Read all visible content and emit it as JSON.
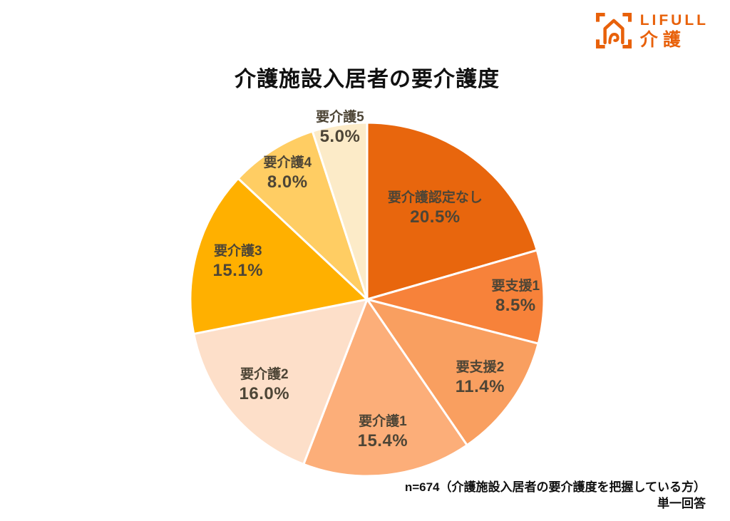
{
  "logo": {
    "brand": "LIFULL",
    "sub": "介護",
    "color": "#E8610A"
  },
  "title": "介護施設入居者の要介護度",
  "note_line1": "n=674（介護施設入居者の要介護度を把握している方）",
  "note_line2": "単一回答",
  "chart_data": {
    "type": "pie",
    "title": "介護施設入居者の要介護度",
    "unit": "%",
    "start_angle_deg": 0,
    "direction": "clockwise",
    "stroke_color": "#FFFFFF",
    "label_color": "#4d4536",
    "slices": [
      {
        "label": "要介護認定なし",
        "value": 20.5,
        "color": "#E8660D",
        "label_r": 0.64
      },
      {
        "label": "要支援1",
        "value": 8.5,
        "color": "#F7823A",
        "label_r": 0.84
      },
      {
        "label": "要支援2",
        "value": 11.4,
        "color": "#F99F60",
        "label_r": 0.78
      },
      {
        "label": "要介護1",
        "value": 15.4,
        "color": "#FCAE79",
        "label_r": 0.76
      },
      {
        "label": "要介護2",
        "value": 16.0,
        "color": "#FDDFC9",
        "label_r": 0.76
      },
      {
        "label": "要介護3",
        "value": 15.1,
        "color": "#FFB000",
        "label_r": 0.76
      },
      {
        "label": "要介護4",
        "value": 8.0,
        "color": "#FFCD63",
        "label_r": 0.84
      },
      {
        "label": "要介護5",
        "value": 5.0,
        "color": "#FCEBC8",
        "label_r": 0.98
      }
    ]
  }
}
